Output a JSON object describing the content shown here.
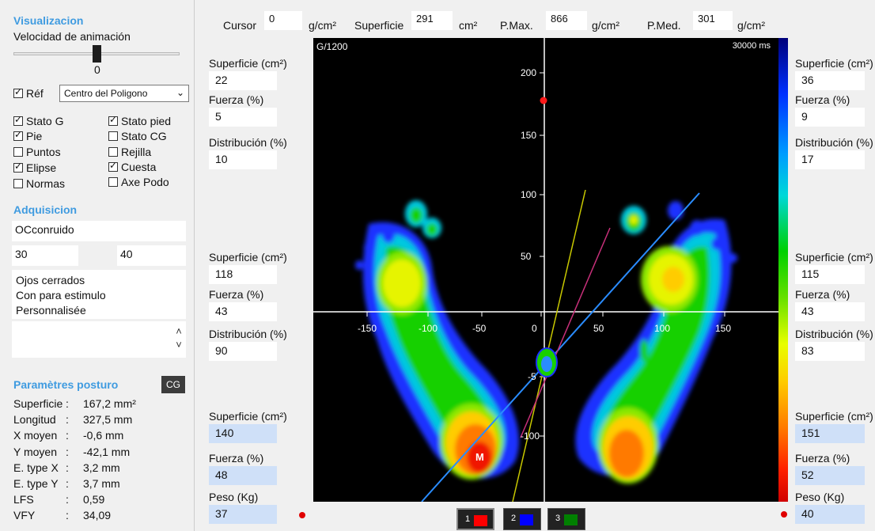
{
  "left": {
    "visualizacion": {
      "title": "Visualizacion",
      "speed_label": "Velocidad de animación",
      "speed_value": "0",
      "ref_label": "Réf",
      "ref_select": "Centro del Poligono",
      "checks": [
        {
          "label": "Stato G",
          "checked": true
        },
        {
          "label": "Stato pied",
          "checked": true
        },
        {
          "label": "Pie",
          "checked": true
        },
        {
          "label": "Stato CG",
          "checked": false
        },
        {
          "label": "Puntos",
          "checked": false
        },
        {
          "label": "Rejilla",
          "checked": false
        },
        {
          "label": "Elipse",
          "checked": true
        },
        {
          "label": "Cuesta",
          "checked": true
        },
        {
          "label": "Normas",
          "checked": false
        },
        {
          "label": "Axe Podo",
          "checked": false
        }
      ]
    },
    "adquisicion": {
      "title": "Adquisicion",
      "name": "OCconruido",
      "value_a": "30",
      "value_b": "40",
      "notes": [
        "Ojos cerrados",
        "Con para estimulo",
        "Personnalisée"
      ]
    },
    "parametres": {
      "title": "Paramètres posturo",
      "cg_button": "CG",
      "stats": [
        {
          "key": "Superficie",
          "value": "167,2 mm²"
        },
        {
          "key": "Longitud",
          "value": "327,5 mm"
        },
        {
          "key": "X moyen",
          "value": "-0,6 mm"
        },
        {
          "key": "Y moyen",
          "value": "-42,1 mm"
        },
        {
          "key": "E. type X",
          "value": "3,2 mm"
        },
        {
          "key": "E. type Y",
          "value": "3,7 mm"
        },
        {
          "key": "LFS",
          "value": "0,59"
        },
        {
          "key": "VFY",
          "value": "34,09"
        }
      ]
    }
  },
  "topbar": {
    "cursor_label": "Cursor",
    "cursor_value": "0",
    "cursor_unit": "g/cm²",
    "superficie_label": "Superficie",
    "superficie_value": "291",
    "superficie_unit": "cm²",
    "pmax_label": "P.Max.",
    "pmax_value": "866",
    "pmax_unit": "g/cm²",
    "pmed_label": "P.Med.",
    "pmed_value": "301",
    "pmed_unit": "g/cm²"
  },
  "left_col": {
    "top": [
      {
        "label": "Superficie (cm²)",
        "value": "22"
      },
      {
        "label": "Fuerza (%)",
        "value": "5"
      },
      {
        "label": "Distribución (%)",
        "value": "10"
      }
    ],
    "middle": [
      {
        "label": "Superficie (cm²)",
        "value": "118"
      },
      {
        "label": "Fuerza (%)",
        "value": "43"
      },
      {
        "label": "Distribución (%)",
        "value": "90"
      }
    ],
    "bottom": [
      {
        "label": "Superficie (cm²)",
        "value": "140"
      },
      {
        "label": "Fuerza (%)",
        "value": "48"
      },
      {
        "label": "Peso (Kg)",
        "value": "37"
      }
    ]
  },
  "right_col": {
    "top": [
      {
        "label": "Superficie (cm²)",
        "value": "36"
      },
      {
        "label": "Fuerza (%)",
        "value": "9"
      },
      {
        "label": "Distribución (%)",
        "value": "17"
      }
    ],
    "middle": [
      {
        "label": "Superficie (cm²)",
        "value": "115"
      },
      {
        "label": "Fuerza (%)",
        "value": "43"
      },
      {
        "label": "Distribución (%)",
        "value": "83"
      }
    ],
    "bottom": [
      {
        "label": "Superficie (cm²)",
        "value": "151"
      },
      {
        "label": "Fuerza (%)",
        "value": "52"
      },
      {
        "label": "Peso (Kg)",
        "value": "40"
      }
    ]
  },
  "canvas": {
    "scale_label": "G/1200",
    "time_label": "30000 ms",
    "marker_label": "M",
    "x_ticks": [
      "-150",
      "-100",
      "-50",
      "0",
      "50",
      "100",
      "150"
    ],
    "y_ticks": [
      "200",
      "150",
      "100",
      "50",
      "-5",
      "-100"
    ]
  },
  "tabs": [
    {
      "label": "1",
      "color": "#ff0000"
    },
    {
      "label": "2",
      "color": "#0000ff"
    },
    {
      "label": "3",
      "color": "#008000"
    }
  ]
}
